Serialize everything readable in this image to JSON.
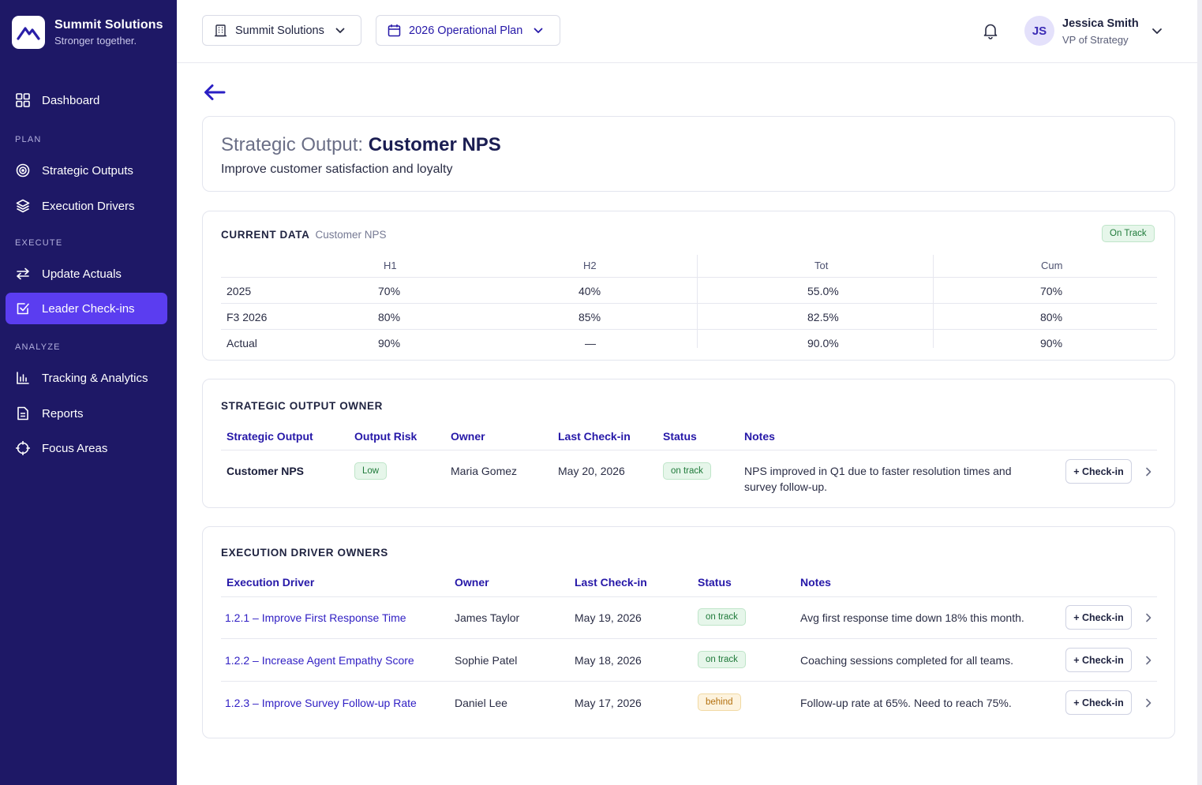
{
  "brand": {
    "name": "Summit Solutions",
    "tagline": "Stronger together."
  },
  "sidebar": {
    "dashboard": "Dashboard",
    "sections": {
      "plan": "PLAN",
      "execute": "EXECUTE",
      "analyze": "ANALYZE"
    },
    "items": [
      {
        "label": "Strategic Outputs",
        "icon": "target-icon"
      },
      {
        "label": "Execution Drivers",
        "icon": "layers-icon"
      },
      {
        "label": "Update Actuals",
        "icon": "swap-icon"
      },
      {
        "label": "Leader Check-ins",
        "icon": "checkbox-icon",
        "active": true
      },
      {
        "label": "Tracking & Analytics",
        "icon": "bar-chart-icon"
      },
      {
        "label": "Reports",
        "icon": "document-icon"
      },
      {
        "label": "Focus Areas",
        "icon": "crosshair-icon"
      }
    ]
  },
  "topbar": {
    "org": "Summit Solutions",
    "plan": "2026 Operational Plan",
    "user": {
      "initials": "JS",
      "name": "Jessica Smith",
      "role": "VP of Strategy"
    }
  },
  "output": {
    "prefix": "Strategic Output:",
    "name": "Customer NPS",
    "description": "Improve customer satisfaction and loyalty"
  },
  "current_data": {
    "heading": "CURRENT DATA",
    "subheading": "Customer NPS",
    "status": "On Track",
    "columns": [
      "H1",
      "H2",
      "Tot",
      "Cum"
    ],
    "rows": [
      {
        "label": "2025",
        "values": [
          "70%",
          "40%",
          "55.0%",
          "70%"
        ]
      },
      {
        "label": "F3 2026",
        "values": [
          "80%",
          "85%",
          "82.5%",
          "80%"
        ]
      },
      {
        "label": "Actual",
        "values": [
          "90%",
          "—",
          "90.0%",
          "90%"
        ]
      }
    ]
  },
  "owner_section": {
    "heading": "STRATEGIC OUTPUT OWNER",
    "columns": [
      "Strategic Output",
      "Output Risk",
      "Owner",
      "Last Check-in",
      "Status",
      "Notes"
    ],
    "row": {
      "output": "Customer NPS",
      "risk": "Low",
      "owner": "Maria Gomez",
      "last_checkin": "May 20, 2026",
      "status": "on track",
      "notes_line1": "NPS improved in Q1 due to faster resolution times and",
      "notes_line2": "survey follow-up.",
      "action": "+ Check-in"
    }
  },
  "drivers_section": {
    "heading": "EXECUTION DRIVER OWNERS",
    "columns": [
      "Execution Driver",
      "Owner",
      "Last Check-in",
      "Status",
      "Notes"
    ],
    "rows": [
      {
        "driver": "1.2.1 – Improve First Response Time",
        "owner": "James Taylor",
        "last_checkin": "May 19, 2026",
        "status": "on track",
        "notes": "Avg first response time down 18% this month.",
        "action": "+ Check-in"
      },
      {
        "driver": "1.2.2 – Increase Agent Empathy Score",
        "owner": "Sophie Patel",
        "last_checkin": "May 18, 2026",
        "status": "on track",
        "notes": "Coaching sessions completed for all teams.",
        "action": "+ Check-in"
      },
      {
        "driver": "1.2.3 – Improve Survey Follow-up Rate",
        "owner": "Daniel Lee",
        "last_checkin": "May 17, 2026",
        "status": "behind",
        "notes": "Follow-up rate at 65%. Need to reach 75%.",
        "action": "+ Check-in"
      }
    ]
  },
  "colors": {
    "sidebar": "#1e1866",
    "accent": "#5b3df0",
    "link": "#3120c4",
    "success": "#1f7a3a",
    "warning": "#b3700e"
  }
}
